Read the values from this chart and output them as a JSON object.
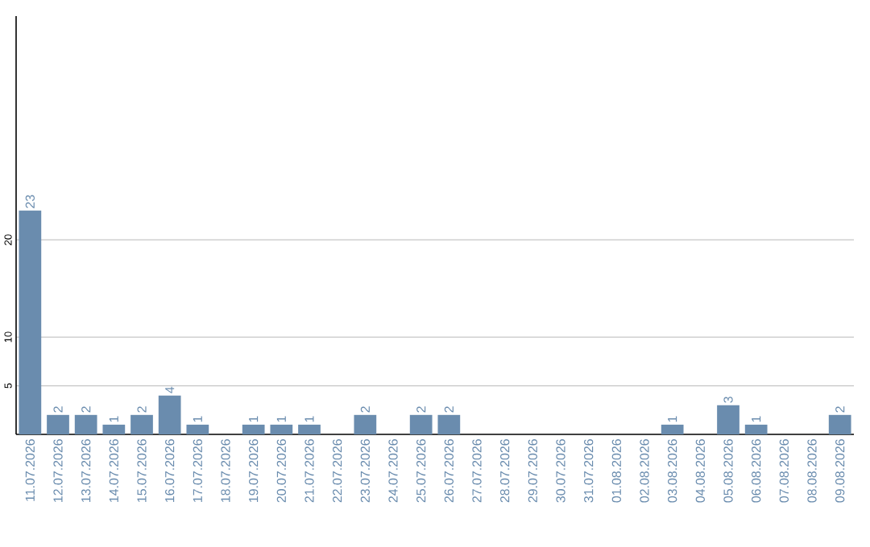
{
  "chart_data": {
    "type": "bar",
    "categories": [
      "11.07.2026",
      "12.07.2026",
      "13.07.2026",
      "14.07.2026",
      "15.07.2026",
      "16.07.2026",
      "17.07.2026",
      "18.07.2026",
      "19.07.2026",
      "20.07.2026",
      "21.07.2026",
      "22.07.2026",
      "23.07.2026",
      "24.07.2026",
      "25.07.2026",
      "26.07.2026",
      "27.07.2026",
      "28.07.2026",
      "29.07.2026",
      "30.07.2026",
      "31.07.2026",
      "01.08.2026",
      "02.08.2026",
      "03.08.2026",
      "04.08.2026",
      "05.08.2026",
      "06.08.2026",
      "07.08.2026",
      "08.08.2026",
      "09.08.2026"
    ],
    "values": [
      23,
      2,
      2,
      1,
      2,
      4,
      1,
      0,
      1,
      1,
      1,
      0,
      2,
      0,
      2,
      2,
      0,
      0,
      0,
      0,
      0,
      0,
      0,
      1,
      0,
      3,
      1,
      0,
      0,
      2
    ],
    "value_labels": [
      "23",
      "2",
      "2",
      "1",
      "2",
      "4",
      "1",
      null,
      "1",
      "1",
      "1",
      null,
      "2",
      null,
      "2",
      "2",
      null,
      null,
      null,
      null,
      null,
      null,
      null,
      "1",
      null,
      "3",
      "1",
      null,
      null,
      "2"
    ],
    "color": "#6a8cae",
    "ylim": [
      0,
      43
    ],
    "yticks": [
      5,
      10,
      20
    ],
    "grid": "y"
  }
}
